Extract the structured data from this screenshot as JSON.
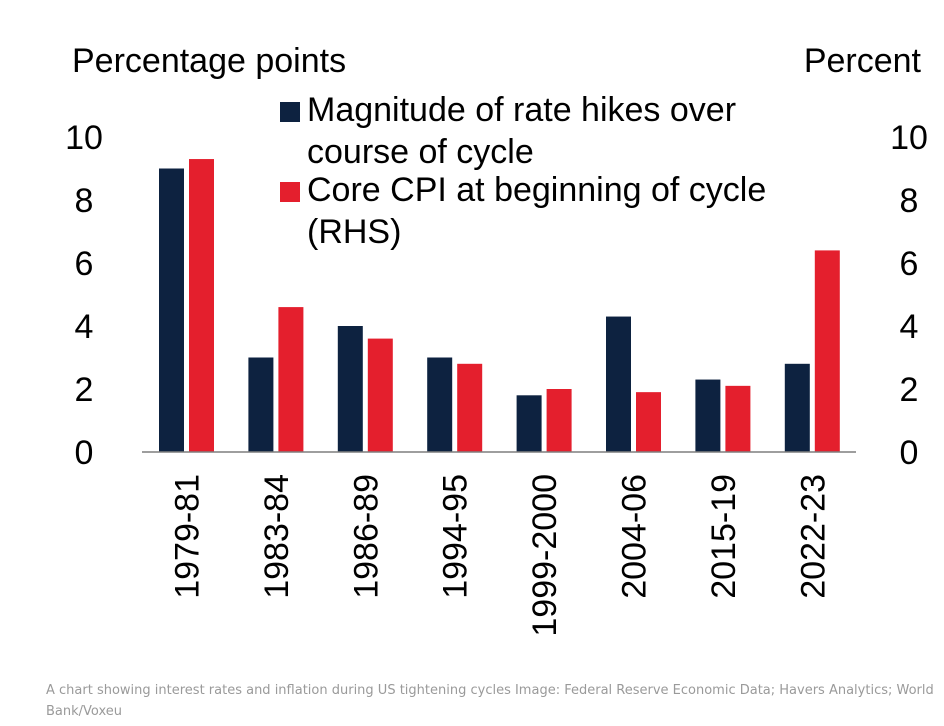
{
  "chart_data": {
    "type": "bar",
    "categories": [
      "1979-81",
      "1983-84",
      "1986-89",
      "1994-95",
      "1999-2000",
      "2004-06",
      "2015-19",
      "2022-23"
    ],
    "series": [
      {
        "name": "Magnitude of rate hikes over course of cycle",
        "values": [
          9.0,
          3.0,
          4.0,
          3.0,
          1.8,
          4.3,
          2.3,
          2.8
        ],
        "color": "#0d2240",
        "axis": "left"
      },
      {
        "name": "Core CPI at beginning of cycle (RHS)",
        "values": [
          9.3,
          4.6,
          3.6,
          2.8,
          2.0,
          1.9,
          2.1,
          6.4
        ],
        "color": "#e41f2d",
        "axis": "right"
      }
    ],
    "left_axis_label": "Percentage points",
    "right_axis_label": "Percent",
    "ylim": [
      0,
      10
    ],
    "yticks": [
      "0",
      "2",
      "4",
      "6",
      "8",
      "10"
    ],
    "legend_lines": [
      [
        "Magnitude of rate hikes over",
        "course of cycle"
      ],
      [
        "Core CPI at beginning of cycle",
        "(RHS)"
      ]
    ],
    "legend_position": "top-center",
    "grid": false
  },
  "caption": "A chart showing interest rates and inflation during US tightening cycles Image: Federal Reserve Economic Data; Havers Analytics; World Bank/Voxeu"
}
